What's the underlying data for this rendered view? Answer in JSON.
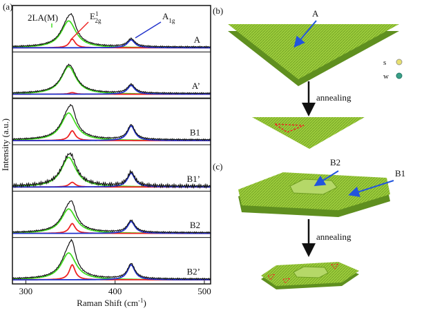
{
  "chart_data": {
    "type": "spectra",
    "panel_label": "(a)",
    "xlim": [
      285,
      507
    ],
    "xticks": [
      300,
      400,
      500
    ],
    "x_label": {
      "text": "Raman Shift (cm",
      "sup": "-1",
      "end": ")"
    },
    "y_label": "Intensity (a.u.)",
    "series": [
      {
        "name": "2LA(M)",
        "color": "#44dd22",
        "center": 348
      },
      {
        "name": "E",
        "sup": "1",
        "sub": "2g",
        "color": "#ee2222",
        "center": 352
      },
      {
        "name": "A",
        "sub": "1g",
        "color": "#2233cc",
        "center": 418
      }
    ],
    "panels": [
      {
        "label": "A",
        "heights": [
          0.68,
          0.22,
          0.2
        ]
      },
      {
        "label": "A’",
        "heights": [
          0.7,
          0.04,
          0.22
        ]
      },
      {
        "label": "B1",
        "heights": [
          0.7,
          0.25,
          0.37
        ]
      },
      {
        "label": "B1’",
        "heights": [
          0.75,
          0.12,
          0.35
        ]
      },
      {
        "label": "B2",
        "heights": [
          0.62,
          0.25,
          0.3
        ]
      },
      {
        "label": "B2’",
        "heights": [
          0.68,
          0.38,
          0.38
        ]
      }
    ]
  },
  "diagram": {
    "panel_b": "(b)",
    "panel_c": "(c)",
    "label_a": "A",
    "legend_s": "s",
    "legend_w": "w",
    "annealing_1": "annealing",
    "annealing_2": "annealing",
    "label_b2": "B2",
    "label_b1": "B1"
  }
}
